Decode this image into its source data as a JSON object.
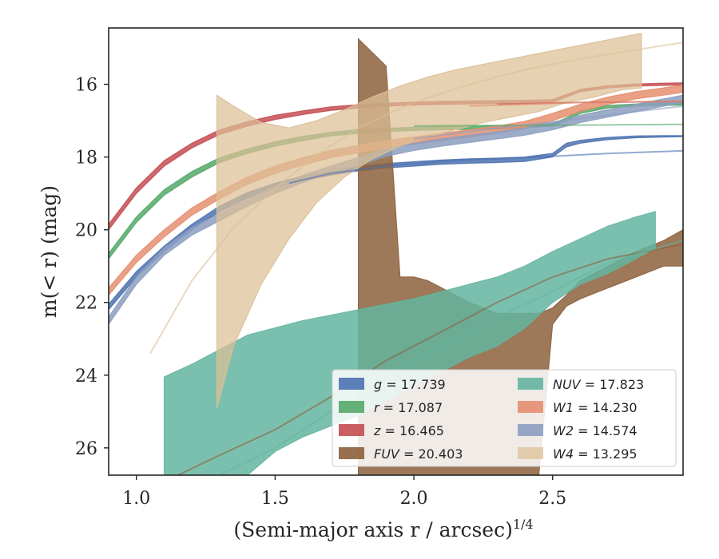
{
  "chart_data": {
    "type": "line",
    "title": "",
    "xlabel": "(Semi-major axis r / arcsec)",
    "xlabel_sup": "1/4",
    "ylabel": "m(< r) (mag)",
    "xlim": [
      0.9,
      2.97
    ],
    "ylim": [
      26.75,
      14.45
    ],
    "y_inverted": true,
    "xticks": [
      1.0,
      1.5,
      2.0,
      2.5
    ],
    "xtick_labels": [
      "1.0",
      "1.5",
      "2.0",
      "2.5"
    ],
    "yticks": [
      16,
      18,
      20,
      22,
      24,
      26
    ],
    "ytick_labels": [
      "16",
      "18",
      "20",
      "22",
      "24",
      "26"
    ],
    "grid": false,
    "legend_position": "lower-right",
    "legend_columns": 2,
    "series": [
      {
        "name": "g = 17.739",
        "label_var": "g",
        "label_val": "= 17.739",
        "color": "#4c72b0",
        "band_x": [
          0.9,
          1.0,
          1.1,
          1.2,
          1.3,
          1.4,
          1.5,
          1.6,
          1.7,
          1.8,
          1.9,
          2.0,
          2.1,
          2.2,
          2.3,
          2.4,
          2.5,
          2.55,
          2.6,
          2.7,
          2.8,
          2.9,
          2.97
        ],
        "band_lo": [
          22.2,
          21.3,
          20.6,
          20.0,
          19.5,
          19.12,
          18.85,
          18.65,
          18.5,
          18.38,
          18.3,
          18.25,
          18.2,
          18.17,
          18.15,
          18.12,
          18.0,
          17.72,
          17.62,
          17.52,
          17.47,
          17.45,
          17.44
        ],
        "band_hi": [
          22.05,
          21.15,
          20.45,
          19.85,
          19.35,
          18.98,
          18.72,
          18.52,
          18.38,
          18.26,
          18.18,
          18.13,
          18.08,
          18.05,
          18.03,
          18.0,
          17.9,
          17.62,
          17.54,
          17.46,
          17.42,
          17.41,
          17.41
        ],
        "fit_x": [
          1.55,
          1.7,
          1.9,
          2.1,
          2.3,
          2.5,
          2.7,
          2.97
        ],
        "fit_y": [
          18.72,
          18.45,
          18.25,
          18.12,
          18.05,
          17.98,
          17.9,
          17.83
        ]
      },
      {
        "name": "r = 17.087",
        "label_var": "r",
        "label_val": "= 17.087",
        "color": "#55a868",
        "band_x": [
          0.9,
          1.0,
          1.1,
          1.2,
          1.3,
          1.4,
          1.5,
          1.6,
          1.7,
          1.8,
          1.9,
          2.0,
          2.1,
          2.2,
          2.3,
          2.4,
          2.5,
          2.55,
          2.6,
          2.7,
          2.8,
          2.9,
          2.97
        ],
        "band_lo": [
          20.8,
          19.8,
          19.05,
          18.55,
          18.15,
          17.9,
          17.7,
          17.55,
          17.42,
          17.35,
          17.3,
          17.27,
          17.25,
          17.24,
          17.23,
          17.2,
          17.15,
          17.0,
          16.8,
          16.65,
          16.6,
          16.58,
          16.57
        ],
        "band_hi": [
          20.65,
          19.65,
          18.9,
          18.4,
          18.02,
          17.78,
          17.58,
          17.43,
          17.32,
          17.25,
          17.21,
          17.18,
          17.16,
          17.15,
          17.14,
          17.12,
          17.08,
          16.92,
          16.72,
          16.58,
          16.54,
          16.52,
          16.51
        ],
        "fit_x": [
          2.0,
          2.3,
          2.6,
          2.97
        ],
        "fit_y": [
          17.15,
          17.13,
          17.12,
          17.1
        ]
      },
      {
        "name": "z = 16.465",
        "label_var": "z",
        "label_val": "= 16.465",
        "color": "#c44e52",
        "band_x": [
          0.9,
          1.0,
          1.1,
          1.2,
          1.3,
          1.4,
          1.5,
          1.6,
          1.7,
          1.8,
          1.9,
          2.0,
          2.1,
          2.2,
          2.3,
          2.4,
          2.5,
          2.55,
          2.6,
          2.7,
          2.8,
          2.9,
          2.97
        ],
        "band_lo": [
          20.0,
          19.0,
          18.25,
          17.75,
          17.38,
          17.15,
          16.97,
          16.83,
          16.72,
          16.65,
          16.6,
          16.57,
          16.55,
          16.54,
          16.53,
          16.52,
          16.5,
          16.35,
          16.2,
          16.1,
          16.05,
          16.03,
          16.02
        ],
        "band_hi": [
          19.85,
          18.85,
          18.1,
          17.62,
          17.25,
          17.03,
          16.85,
          16.73,
          16.62,
          16.56,
          16.52,
          16.49,
          16.47,
          16.46,
          16.45,
          16.44,
          16.42,
          16.28,
          16.14,
          16.04,
          15.99,
          15.97,
          15.96
        ],
        "fit_x": [
          2.3,
          2.6,
          2.97
        ],
        "fit_y": [
          16.55,
          16.5,
          16.47
        ]
      },
      {
        "name": "FUV = 20.403",
        "label_var": "FUV",
        "label_val": "= 20.403",
        "color": "#8c613c",
        "band_x": [
          1.8,
          1.9,
          1.95,
          2.0,
          2.05,
          2.1,
          2.2,
          2.3,
          2.4,
          2.45,
          2.5,
          2.55,
          2.6,
          2.7,
          2.8,
          2.9,
          2.97
        ],
        "band_lo": [
          26.75,
          26.75,
          26.75,
          26.75,
          26.75,
          26.75,
          26.75,
          26.75,
          26.75,
          26.75,
          22.6,
          22.1,
          21.9,
          21.6,
          21.3,
          21.0,
          21.0
        ],
        "band_hi": [
          14.75,
          15.5,
          21.3,
          21.3,
          21.4,
          21.6,
          22.0,
          22.3,
          22.3,
          22.3,
          22.15,
          21.8,
          21.4,
          21.0,
          20.6,
          20.3,
          20.0
        ],
        "fit_x": [
          1.15,
          1.3,
          1.5,
          1.7,
          1.9,
          2.1,
          2.3,
          2.5,
          2.7,
          2.97
        ],
        "fit_y": [
          26.75,
          26.2,
          25.5,
          24.6,
          23.6,
          22.8,
          22.0,
          21.3,
          20.8,
          20.4
        ]
      },
      {
        "name": "NUV = 17.823",
        "label_var": "NUV",
        "label_val": "= 17.823",
        "color": "#64b5a0",
        "band_x": [
          1.1,
          1.2,
          1.3,
          1.4,
          1.5,
          1.6,
          1.7,
          1.8,
          1.9,
          2.0,
          2.1,
          2.2,
          2.3,
          2.4,
          2.5,
          2.6,
          2.7,
          2.8,
          2.87
        ],
        "band_lo": [
          26.75,
          26.75,
          26.75,
          26.75,
          26.1,
          25.7,
          25.4,
          25.1,
          24.7,
          24.3,
          23.9,
          23.5,
          23.2,
          22.7,
          22.0,
          21.5,
          21.2,
          20.8,
          20.5
        ],
        "band_hi": [
          24.05,
          23.7,
          23.3,
          22.9,
          22.7,
          22.5,
          22.35,
          22.2,
          22.05,
          21.9,
          21.7,
          21.5,
          21.3,
          21.0,
          20.6,
          20.25,
          19.9,
          19.65,
          19.5
        ],
        "fit_x": [
          1.3,
          1.5,
          1.7,
          1.9,
          2.1,
          2.3,
          2.5,
          2.7,
          2.97
        ],
        "fit_y": [
          26.75,
          26.0,
          25.0,
          24.0,
          23.2,
          22.4,
          21.7,
          20.9,
          20.3
        ]
      },
      {
        "name": "W1 = 14.230",
        "label_var": "W1",
        "label_val": "= 14.230",
        "color": "#e58f70",
        "band_x": [
          0.9,
          1.0,
          1.1,
          1.2,
          1.3,
          1.4,
          1.5,
          1.6,
          1.7,
          1.8,
          1.9,
          2.0,
          2.1,
          2.2,
          2.3,
          2.4,
          2.5,
          2.6,
          2.7,
          2.8,
          2.9,
          2.97
        ],
        "band_lo": [
          21.8,
          20.9,
          20.2,
          19.6,
          19.15,
          18.75,
          18.45,
          18.22,
          18.02,
          17.88,
          17.75,
          17.65,
          17.55,
          17.45,
          17.35,
          17.22,
          17.0,
          16.75,
          16.55,
          16.4,
          16.3,
          16.22
        ],
        "band_hi": [
          21.6,
          20.7,
          20.0,
          19.4,
          18.95,
          18.55,
          18.25,
          18.02,
          17.82,
          17.68,
          17.55,
          17.45,
          17.35,
          17.25,
          17.15,
          17.02,
          16.8,
          16.55,
          16.35,
          16.2,
          16.1,
          16.02
        ],
        "fit_x": [
          2.2,
          2.4,
          2.6,
          2.8,
          2.97
        ],
        "fit_y": [
          16.6,
          16.55,
          16.5,
          16.48,
          16.46
        ]
      },
      {
        "name": "W2 = 14.574",
        "label_var": "W2",
        "label_val": "= 14.574",
        "color": "#8c9fc0",
        "band_x": [
          0.9,
          1.0,
          1.1,
          1.2,
          1.3,
          1.4,
          1.5,
          1.6,
          1.7,
          1.8,
          1.9,
          2.0,
          2.1,
          2.2,
          2.3,
          2.4,
          2.5,
          2.6,
          2.7,
          2.8,
          2.9,
          2.97
        ],
        "band_lo": [
          22.6,
          21.5,
          20.7,
          20.15,
          19.75,
          19.35,
          19.0,
          18.7,
          18.45,
          18.22,
          17.98,
          17.82,
          17.7,
          17.6,
          17.5,
          17.4,
          17.25,
          17.05,
          16.9,
          16.75,
          16.6,
          16.5
        ],
        "band_hi": [
          22.4,
          21.3,
          20.5,
          19.95,
          19.55,
          19.15,
          18.8,
          18.5,
          18.25,
          18.02,
          17.78,
          17.62,
          17.5,
          17.4,
          17.3,
          17.2,
          17.05,
          16.85,
          16.7,
          16.55,
          16.4,
          16.3
        ],
        "fit_x": [
          2.0,
          2.3,
          2.6,
          2.8,
          2.97
        ],
        "fit_y": [
          17.5,
          17.2,
          16.95,
          16.75,
          16.6
        ]
      },
      {
        "name": "W4 = 13.295",
        "label_var": "W4",
        "label_val": "= 13.295",
        "color": "#dcbf96",
        "band_x": [
          1.29,
          1.35,
          1.45,
          1.55,
          1.65,
          1.75,
          1.85,
          1.95,
          2.05,
          2.15,
          2.25,
          2.35,
          2.45,
          2.55,
          2.65,
          2.75,
          2.82
        ],
        "band_lo": [
          24.9,
          23.2,
          21.5,
          20.25,
          19.25,
          18.55,
          18.05,
          17.7,
          17.45,
          17.25,
          17.05,
          16.9,
          16.75,
          16.5,
          16.35,
          16.15,
          16.1
        ],
        "band_hi": [
          16.3,
          16.6,
          17.05,
          17.2,
          17.0,
          16.7,
          16.35,
          16.05,
          15.8,
          15.6,
          15.45,
          15.3,
          15.15,
          15.0,
          14.85,
          14.7,
          14.6
        ],
        "fit_x": [
          1.05,
          1.2,
          1.35,
          1.5,
          1.65,
          1.8,
          2.0,
          2.2,
          2.4,
          2.6,
          2.8,
          2.97
        ],
        "fit_y": [
          23.4,
          21.4,
          19.95,
          18.85,
          17.95,
          17.2,
          16.5,
          16.0,
          15.6,
          15.3,
          15.05,
          14.85
        ]
      }
    ]
  }
}
